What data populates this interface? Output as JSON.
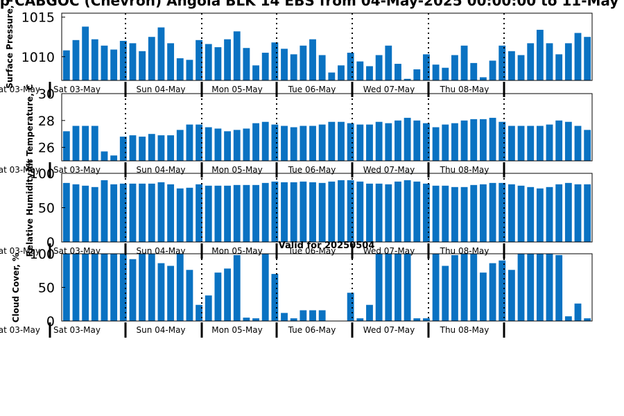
{
  "figure": {
    "title": "op CABGOC (Chevron) Angola BLK 14 EBS from 04-May-2025 00:00:00 to 11-May",
    "annotation": "Valid for 20250504"
  },
  "colors": {
    "bar": "#0a72c2",
    "axis": "#000000"
  },
  "chart_data": [
    {
      "type": "bar",
      "ylabel": "Surface Pressure, mb",
      "ylim": [
        1007.0,
        1015.5
      ],
      "yticks": [
        1010,
        1015
      ],
      "x_tick_labels": [
        "Sat 03-May",
        "Sun 04-May",
        "Mon 05-May",
        "Tue 06-May",
        "Wed 07-May",
        "Thu 08-May"
      ],
      "left_label": "Sat 03-May",
      "values": [
        1010.8,
        1012.1,
        1013.8,
        1012.2,
        1011.4,
        1010.9,
        1012.0,
        1011.7,
        1010.7,
        1012.5,
        1013.7,
        1011.7,
        1009.8,
        1009.6,
        1012.1,
        1011.6,
        1011.2,
        1012.2,
        1013.2,
        1011.1,
        1008.9,
        1010.5,
        1011.8,
        1011.0,
        1010.3,
        1011.4,
        1012.2,
        1010.2,
        1008.0,
        1008.9,
        1010.5,
        1009.4,
        1008.8,
        1010.2,
        1011.4,
        1009.1,
        1007.2,
        1008.4,
        1010.3,
        1009.0,
        1008.6,
        1010.2,
        1011.4,
        1009.2,
        1007.4,
        1009.5,
        1011.4,
        1010.7,
        1010.2,
        1011.7,
        1013.4,
        1011.7,
        1010.3,
        1011.7,
        1013.0,
        1012.5
      ]
    },
    {
      "type": "bar",
      "ylabel": "Air Temperature, C",
      "ylim": [
        25.0,
        30.0
      ],
      "yticks": [
        26,
        28,
        30
      ],
      "x_tick_labels": [
        "Sat 03-May",
        "Sun 04-May",
        "Mon 05-May",
        "Tue 06-May",
        "Wed 07-May",
        "Thu 08-May"
      ],
      "left_label": "Sat 03-May",
      "values": [
        27.2,
        27.6,
        27.6,
        27.6,
        25.7,
        25.4,
        26.8,
        26.9,
        26.8,
        27.0,
        26.9,
        26.9,
        27.3,
        27.7,
        27.7,
        27.5,
        27.4,
        27.2,
        27.3,
        27.4,
        27.8,
        27.9,
        27.7,
        27.6,
        27.5,
        27.6,
        27.6,
        27.7,
        27.9,
        27.9,
        27.8,
        27.7,
        27.7,
        27.9,
        27.8,
        28.0,
        28.2,
        28.0,
        27.8,
        27.5,
        27.7,
        27.8,
        28.0,
        28.1,
        28.1,
        28.2,
        27.9,
        27.6,
        27.6,
        27.6,
        27.6,
        27.7,
        28.0,
        27.9,
        27.6,
        27.3
      ]
    },
    {
      "type": "bar",
      "ylabel": "Relative Humidity, %",
      "ylim": [
        0,
        100
      ],
      "yticks": [
        0,
        50,
        100
      ],
      "x_tick_labels": [
        "Sat 03-May",
        "Sun 04-May",
        "Mon 05-May",
        "Tue 06-May",
        "Wed 07-May",
        "Thu 08-May"
      ],
      "left_label": "Sat 03-May",
      "values": [
        86,
        84,
        82,
        80,
        90,
        84,
        85,
        85,
        85,
        85,
        87,
        84,
        78,
        79,
        84,
        82,
        82,
        82,
        83,
        83,
        83,
        86,
        88,
        87,
        87,
        88,
        87,
        86,
        88,
        90,
        90,
        88,
        85,
        85,
        84,
        88,
        90,
        88,
        85,
        82,
        82,
        80,
        80,
        83,
        84,
        86,
        86,
        84,
        82,
        80,
        78,
        80,
        84,
        86,
        84,
        84
      ]
    },
    {
      "type": "bar",
      "ylabel": "Cloud Cover, %",
      "ylim": [
        0,
        100
      ],
      "yticks": [
        0,
        50,
        100
      ],
      "x_tick_labels": [
        "Sat 03-May",
        "Sun 04-May",
        "Mon 05-May",
        "Tue 06-May",
        "Wed 07-May",
        "Thu 08-May"
      ],
      "left_label": "Sat 03-May",
      "values": [
        100,
        100,
        100,
        100,
        100,
        100,
        100,
        92,
        100,
        100,
        86,
        82,
        100,
        76,
        24,
        38,
        72,
        78,
        98,
        5,
        4,
        100,
        70,
        12,
        4,
        16,
        16,
        16,
        0,
        0,
        42,
        4,
        24,
        100,
        100,
        100,
        100,
        4,
        4,
        100,
        82,
        98,
        100,
        100,
        72,
        86,
        90,
        76,
        100,
        100,
        100,
        100,
        98,
        7,
        26,
        4
      ]
    }
  ]
}
